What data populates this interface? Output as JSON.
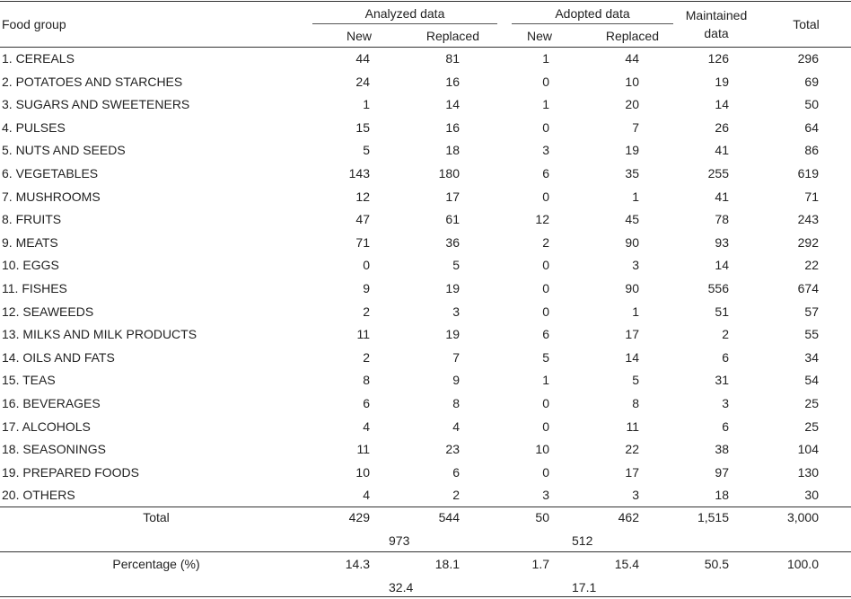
{
  "header": {
    "food_group": "Food group",
    "analyzed": "Analyzed data",
    "adopted": "Adopted data",
    "maintained_line1": "Maintained",
    "maintained_line2": "data",
    "total": "Total",
    "new": "New",
    "replaced": "Replaced"
  },
  "rows": [
    {
      "group": "1. CEREALS",
      "a_new": "44",
      "a_rep": "81",
      "d_new": "1",
      "d_rep": "44",
      "maint": "126",
      "total": "296"
    },
    {
      "group": "2. POTATOES AND STARCHES",
      "a_new": "24",
      "a_rep": "16",
      "d_new": "0",
      "d_rep": "10",
      "maint": "19",
      "total": "69"
    },
    {
      "group": "3. SUGARS AND SWEETENERS",
      "a_new": "1",
      "a_rep": "14",
      "d_new": "1",
      "d_rep": "20",
      "maint": "14",
      "total": "50"
    },
    {
      "group": "4. PULSES",
      "a_new": "15",
      "a_rep": "16",
      "d_new": "0",
      "d_rep": "7",
      "maint": "26",
      "total": "64"
    },
    {
      "group": "5. NUTS AND SEEDS",
      "a_new": "5",
      "a_rep": "18",
      "d_new": "3",
      "d_rep": "19",
      "maint": "41",
      "total": "86"
    },
    {
      "group": "6. VEGETABLES",
      "a_new": "143",
      "a_rep": "180",
      "d_new": "6",
      "d_rep": "35",
      "maint": "255",
      "total": "619"
    },
    {
      "group": "7. MUSHROOMS",
      "a_new": "12",
      "a_rep": "17",
      "d_new": "0",
      "d_rep": "1",
      "maint": "41",
      "total": "71"
    },
    {
      "group": "8. FRUITS",
      "a_new": "47",
      "a_rep": "61",
      "d_new": "12",
      "d_rep": "45",
      "maint": "78",
      "total": "243"
    },
    {
      "group": "9. MEATS",
      "a_new": "71",
      "a_rep": "36",
      "d_new": "2",
      "d_rep": "90",
      "maint": "93",
      "total": "292"
    },
    {
      "group": "10. EGGS",
      "a_new": "0",
      "a_rep": "5",
      "d_new": "0",
      "d_rep": "3",
      "maint": "14",
      "total": "22"
    },
    {
      "group": "11. FISHES",
      "a_new": "9",
      "a_rep": "19",
      "d_new": "0",
      "d_rep": "90",
      "maint": "556",
      "total": "674"
    },
    {
      "group": "12. SEAWEEDS",
      "a_new": "2",
      "a_rep": "3",
      "d_new": "0",
      "d_rep": "1",
      "maint": "51",
      "total": "57"
    },
    {
      "group": "13. MILKS AND MILK PRODUCTS",
      "a_new": "11",
      "a_rep": "19",
      "d_new": "6",
      "d_rep": "17",
      "maint": "2",
      "total": "55"
    },
    {
      "group": "14. OILS AND FATS",
      "a_new": "2",
      "a_rep": "7",
      "d_new": "5",
      "d_rep": "14",
      "maint": "6",
      "total": "34"
    },
    {
      "group": "15. TEAS",
      "a_new": "8",
      "a_rep": "9",
      "d_new": "1",
      "d_rep": "5",
      "maint": "31",
      "total": "54"
    },
    {
      "group": "16. BEVERAGES",
      "a_new": "6",
      "a_rep": "8",
      "d_new": "0",
      "d_rep": "8",
      "maint": "3",
      "total": "25"
    },
    {
      "group": "17. ALCOHOLS",
      "a_new": "4",
      "a_rep": "4",
      "d_new": "0",
      "d_rep": "11",
      "maint": "6",
      "total": "25"
    },
    {
      "group": "18. SEASONINGS",
      "a_new": "11",
      "a_rep": "23",
      "d_new": "10",
      "d_rep": "22",
      "maint": "38",
      "total": "104"
    },
    {
      "group": "19. PREPARED FOODS",
      "a_new": "10",
      "a_rep": "6",
      "d_new": "0",
      "d_rep": "17",
      "maint": "97",
      "total": "130"
    },
    {
      "group": "20. OTHERS",
      "a_new": "4",
      "a_rep": "2",
      "d_new": "3",
      "d_rep": "3",
      "maint": "18",
      "total": "30"
    }
  ],
  "totals": {
    "label": "Total",
    "a_new": "429",
    "a_rep": "544",
    "d_new": "50",
    "d_rep": "462",
    "maint": "1,515",
    "total": "3,000",
    "a_sum": "973",
    "d_sum": "512"
  },
  "percentage": {
    "label": "Percentage (%)",
    "a_new": "14.3",
    "a_rep": "18.1",
    "d_new": "1.7",
    "d_rep": "15.4",
    "maint": "50.5",
    "total": "100.0",
    "a_sum": "32.4",
    "d_sum": "17.1"
  }
}
